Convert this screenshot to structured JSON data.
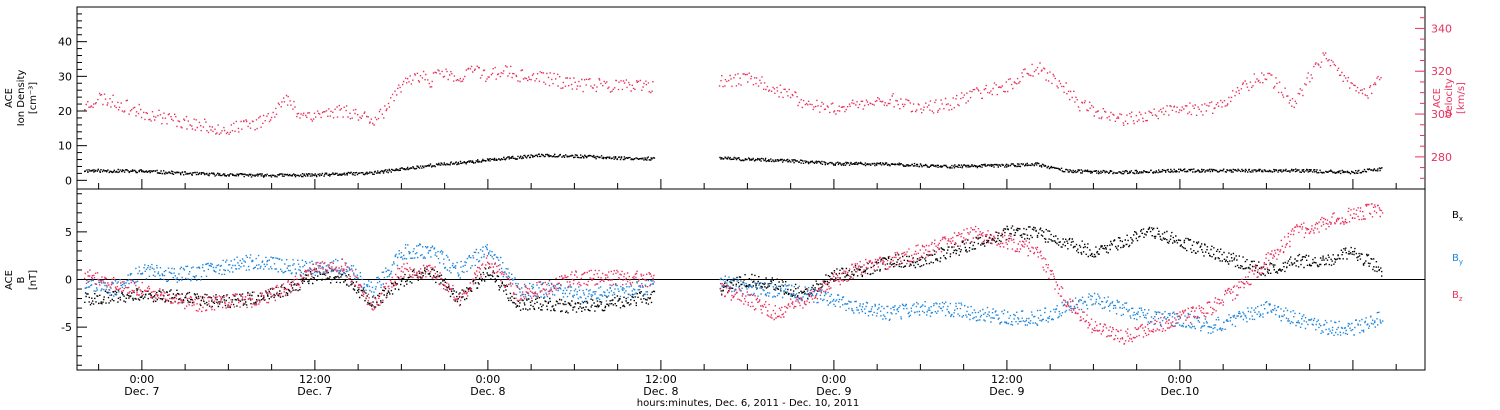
{
  "colors": {
    "density": "#000000",
    "velocity": "#e8325e",
    "bx": "#000000",
    "by": "#1f86dc",
    "bz": "#e8325e"
  },
  "chart_data": [
    {
      "type": "scatter",
      "panel": "top",
      "ylabel_lines": [
        "ACE",
        "Ion Density",
        "[cm⁻³]"
      ],
      "ylabel_right_lines": [
        "ACE",
        "Velocity",
        "[km/s]"
      ],
      "xlim": [
        -4.5,
        89
      ],
      "ylim_left": [
        -2.5,
        50
      ],
      "ylim_right": [
        265,
        350
      ],
      "yticks_left": [
        0,
        10,
        20,
        30,
        40
      ],
      "yticks_right": [
        280,
        300,
        320,
        340
      ],
      "gap": [
        35.5,
        40
      ],
      "series": [
        {
          "axis": "left",
          "color": "#000000",
          "x": [
            -4,
            0,
            4,
            8,
            12,
            16,
            20,
            24,
            28,
            32,
            34,
            40,
            44,
            48,
            52,
            56,
            60,
            62,
            64,
            66,
            68,
            72,
            76,
            80,
            84,
            86
          ],
          "y": [
            3,
            2.8,
            2,
            1.6,
            1.7,
            2.3,
            4.5,
            6,
            7.5,
            6.8,
            6.5,
            6.5,
            6,
            5,
            4.8,
            4.2,
            4.5,
            4.8,
            3,
            2.6,
            2.5,
            3,
            3,
            3,
            2.5,
            3.5
          ]
        },
        {
          "axis": "right",
          "color": "#e8325e",
          "x": [
            -4,
            -3,
            -2,
            0,
            2,
            4,
            6,
            8,
            9,
            10,
            11,
            12,
            14,
            15,
            16,
            17,
            18,
            19,
            20,
            21,
            22,
            23,
            24,
            25,
            26,
            28,
            30,
            32,
            34,
            35,
            36,
            40,
            42,
            44,
            46,
            48,
            50,
            52,
            54,
            56,
            58,
            60,
            62,
            63,
            64,
            65,
            66,
            68,
            70,
            72,
            74,
            76,
            77,
            78,
            79,
            80,
            81,
            82,
            83,
            84,
            85,
            86
          ],
          "y": [
            304,
            308,
            306,
            301,
            298,
            295,
            293,
            296,
            301,
            307,
            300,
            300,
            302,
            300,
            298,
            303,
            313,
            319,
            316,
            320,
            315,
            322,
            318,
            321,
            318,
            317,
            314,
            314,
            313,
            313,
            312,
            315,
            317,
            312,
            305,
            303,
            305,
            307,
            303,
            305,
            310,
            314,
            322,
            318,
            312,
            305,
            302,
            298,
            300,
            302,
            303,
            310,
            316,
            318,
            312,
            305,
            318,
            327,
            320,
            312,
            310,
            318
          ]
        }
      ]
    },
    {
      "type": "scatter",
      "panel": "bottom",
      "ylabel_lines": [
        "ACE",
        "B",
        "[nT]"
      ],
      "xlim": [
        -4.5,
        89
      ],
      "ylim": [
        -9.5,
        9.5
      ],
      "yticks": [
        -5,
        0,
        5
      ],
      "gap": [
        35.5,
        40
      ],
      "xticks": [
        {
          "x": 0,
          "time": "0:00",
          "date": "Dec. 7"
        },
        {
          "x": 12,
          "time": "12:00",
          "date": "Dec. 7"
        },
        {
          "x": 24,
          "time": "0:00",
          "date": "Dec. 8"
        },
        {
          "x": 36,
          "time": "12:00",
          "date": "Dec. 8"
        },
        {
          "x": 48,
          "time": "0:00",
          "date": "Dec. 9"
        },
        {
          "x": 60,
          "time": "12:00",
          "date": "Dec. 9"
        },
        {
          "x": 72,
          "time": "0:00",
          "date": "Dec.10"
        }
      ],
      "xlabel": "hours:minutes, Dec. 6, 2011 - Dec. 10, 2011",
      "series": [
        {
          "name": "Bx",
          "label_main": "B",
          "label_sub": "x",
          "color": "#000000",
          "x": [
            -4,
            -2,
            0,
            2,
            4,
            6,
            8,
            10,
            12,
            14,
            16,
            18,
            20,
            22,
            24,
            26,
            28,
            30,
            32,
            34,
            40,
            42,
            44,
            46,
            48,
            50,
            52,
            54,
            56,
            58,
            60,
            62,
            64,
            66,
            68,
            70,
            72,
            74,
            76,
            78,
            80,
            82,
            84,
            86
          ],
          "y": [
            -2,
            -1.8,
            -1.5,
            -1.7,
            -2,
            -2.2,
            -1.8,
            -1,
            0.5,
            0.3,
            -2.5,
            0,
            1,
            -2,
            1,
            -2.5,
            -2.5,
            -2.8,
            -2.5,
            -2,
            -1,
            0,
            -0.5,
            -1.5,
            0.5,
            1,
            2,
            2,
            3,
            4,
            5,
            5,
            4,
            3,
            4,
            5,
            4,
            3,
            2,
            1,
            2,
            2,
            3,
            1
          ]
        },
        {
          "name": "By",
          "label_main": "B",
          "label_sub": "y",
          "color": "#1f86dc",
          "x": [
            -4,
            -2,
            0,
            2,
            4,
            6,
            8,
            10,
            12,
            14,
            16,
            18,
            20,
            22,
            24,
            26,
            28,
            30,
            32,
            34,
            40,
            42,
            44,
            46,
            48,
            50,
            52,
            54,
            56,
            58,
            60,
            62,
            64,
            66,
            68,
            70,
            72,
            74,
            76,
            78,
            80,
            82,
            84,
            86
          ],
          "y": [
            -0.5,
            -1,
            1,
            0.5,
            0.8,
            1.5,
            2,
            1.5,
            1.2,
            1.5,
            -1,
            3,
            3,
            1,
            3.5,
            -1,
            -1,
            -1.5,
            -1.5,
            -1,
            0,
            -1,
            -1,
            -1.5,
            -2,
            -3,
            -3.5,
            -3,
            -3,
            -3.5,
            -4,
            -4,
            -3,
            -2,
            -3,
            -4,
            -4,
            -5,
            -4,
            -3,
            -4,
            -5,
            -5,
            -4
          ]
        },
        {
          "name": "Bz",
          "label_main": "B",
          "label_sub": "z",
          "color": "#e8325e",
          "x": [
            -4,
            -2,
            0,
            2,
            4,
            6,
            8,
            10,
            12,
            14,
            16,
            18,
            20,
            22,
            24,
            26,
            28,
            30,
            32,
            34,
            40,
            42,
            44,
            46,
            48,
            50,
            52,
            54,
            56,
            58,
            60,
            62,
            64,
            66,
            68,
            70,
            72,
            74,
            76,
            78,
            80,
            82,
            84,
            86
          ],
          "y": [
            0.5,
            -0.5,
            -1,
            -2,
            -2.5,
            -2.2,
            -2,
            -1,
            1.2,
            1.5,
            -2.8,
            1,
            1,
            -2,
            2,
            -1.5,
            -0.8,
            0.2,
            0.3,
            0.3,
            -1,
            -2,
            -3.5,
            -2,
            0,
            1.5,
            2,
            3,
            4,
            5,
            4,
            3,
            -2,
            -5,
            -6,
            -5,
            -4,
            -3,
            -1,
            2,
            5,
            6,
            7,
            7.5
          ]
        }
      ]
    }
  ]
}
